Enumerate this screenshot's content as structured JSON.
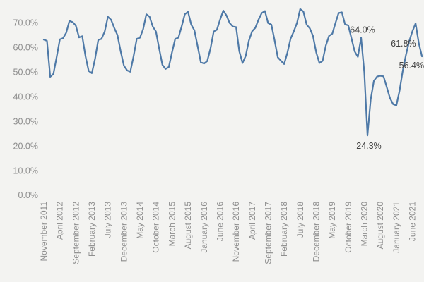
{
  "chart_data": {
    "type": "line",
    "title": "",
    "legend": "none",
    "grid": "none",
    "x_tick_interval": 5,
    "x_tick_labels": [
      "November 2011",
      "April 2012",
      "September 2012",
      "February 2013",
      "July 2013",
      "December 2013",
      "May 2014",
      "October 2014",
      "March 2015",
      "August 2015",
      "January 2016",
      "June 2016",
      "November 2016",
      "April 2017",
      "September 2017",
      "February 2018",
      "July 2018",
      "December 2018",
      "May 2019",
      "October 2019",
      "March 2020",
      "August 2020",
      "January 2021",
      "June 2021"
    ],
    "y_ticks": [
      "0.0%",
      "10.0%",
      "20.0%",
      "30.0%",
      "40.0%",
      "50.0%",
      "60.0%",
      "70.0%"
    ],
    "ylim": [
      0,
      70
    ],
    "values": [
      63.2,
      62.7,
      48.1,
      49.3,
      56.0,
      63.3,
      63.8,
      66.0,
      70.8,
      70.3,
      68.9,
      64.1,
      64.6,
      56.5,
      50.5,
      49.6,
      55.5,
      63.1,
      63.5,
      66.5,
      72.5,
      71.3,
      67.9,
      65.0,
      58.4,
      52.6,
      50.7,
      50.2,
      56.4,
      63.5,
      64.0,
      67.5,
      73.5,
      72.5,
      68.5,
      66.5,
      59.5,
      53.0,
      51.3,
      52.1,
      58.0,
      63.5,
      64.0,
      68.5,
      73.5,
      74.5,
      69.3,
      67.0,
      60.5,
      54.0,
      53.5,
      54.5,
      59.5,
      66.5,
      67.2,
      71.3,
      75.0,
      73.0,
      69.9,
      68.5,
      68.3,
      58.5,
      53.7,
      56.6,
      62.8,
      66.6,
      68.0,
      71.3,
      74.0,
      74.8,
      69.9,
      69.3,
      63.0,
      56.0,
      54.6,
      53.3,
      57.9,
      63.6,
      66.5,
      70.0,
      75.6,
      74.6,
      69.3,
      67.8,
      64.7,
      58.0,
      53.7,
      54.6,
      60.8,
      64.7,
      65.6,
      69.9,
      74.0,
      74.3,
      69.4,
      69.0,
      63.7,
      58.4,
      56.2,
      64.0,
      50.0,
      24.3,
      39.0,
      46.5,
      48.2,
      48.5,
      48.3,
      44.0,
      39.5,
      37.0,
      36.5,
      42.5,
      50.5,
      57.0,
      62.5,
      66.5,
      69.8,
      61.8,
      56.4
    ],
    "annotations": [
      {
        "text": "64.0%",
        "point_index": 99,
        "placement": "above"
      },
      {
        "text": "24.3%",
        "point_index": 101,
        "placement": "below"
      },
      {
        "text": "61.8%",
        "point_index": 117,
        "placement": "left"
      },
      {
        "text": "56.4%",
        "point_index": 118,
        "placement": "below-left"
      }
    ],
    "colors": {
      "line": "#4e79a7",
      "axis_text": "#8e8e8e",
      "annotation_text": "#414141",
      "background": "#f3f3f1"
    }
  }
}
